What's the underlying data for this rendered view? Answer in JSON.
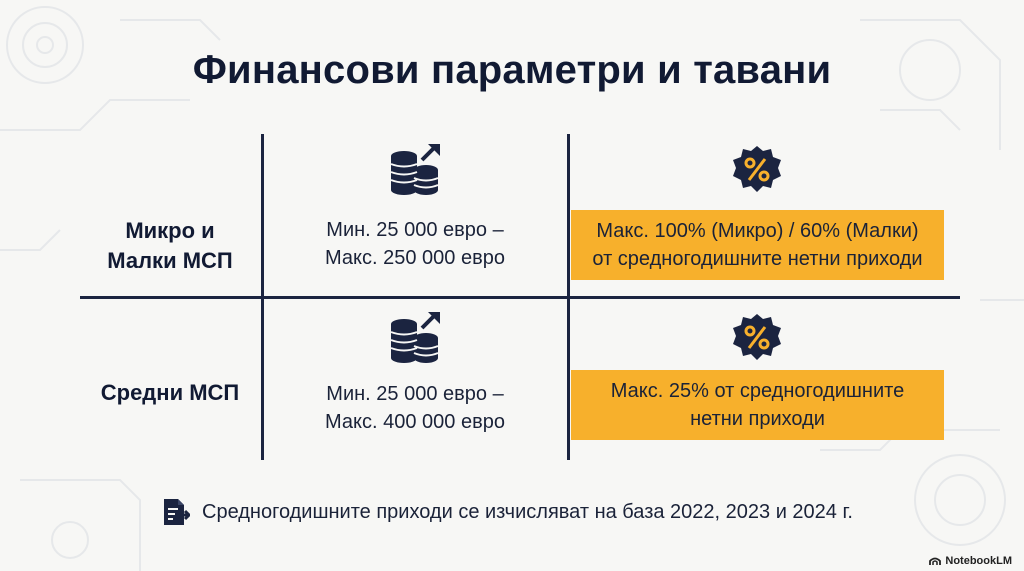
{
  "title": "Финансови параметри и тавани",
  "rows": [
    {
      "label_line1": "Микро и",
      "label_line2": "Малки МСП",
      "amount_line1": "Мин. 25 000 евро –",
      "amount_line2": "Макс. 250 000 евро",
      "cap_line1": "Макс. 100% (Микро) / 60% (Малки)",
      "cap_line2": "от средногодишните нетни приходи"
    },
    {
      "label_line1": "Средни МСП",
      "amount_line1": "Мин. 25 000 евро –",
      "amount_line2": "Макс. 400 000 евро",
      "cap_line1": "Макс. 25% от средногодишните",
      "cap_line2": "нетни приходи"
    }
  ],
  "footer": {
    "text": "Средногодишните приходи се изчисляват на база 2022, 2023 и 2024 г.",
    "icon": "document-checklist-icon"
  },
  "watermark": "NotebookLM",
  "colors": {
    "accent": "#f7b02c",
    "ink": "#1b2440",
    "background": "#f7f7f5"
  },
  "icons": [
    "coins-growth-icon",
    "percent-badge-icon"
  ]
}
